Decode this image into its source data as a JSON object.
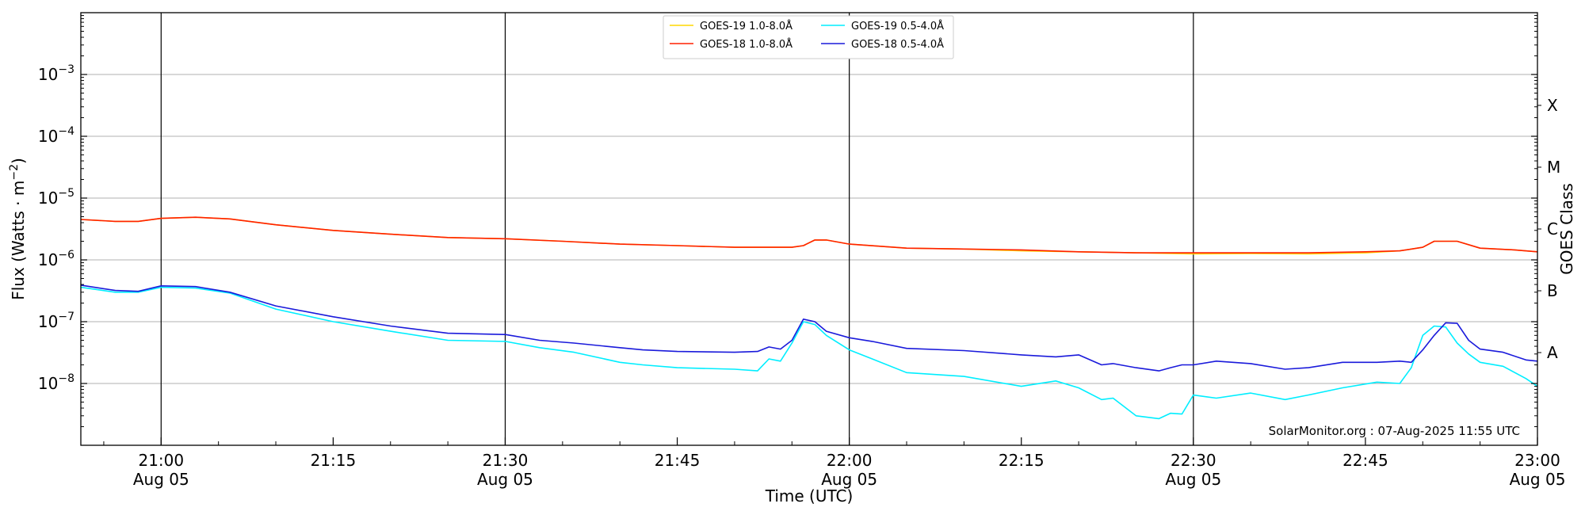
{
  "chart_data": {
    "type": "line",
    "xlabel": "Time (UTC)",
    "ylabel_main": "Flux (Watts · m",
    "ylabel_sup": "−2",
    "ylabel_close": ")",
    "right_label": "GOES Class",
    "watermark": "SolarMonitor.org : 07-Aug-2025 11:55 UTC",
    "x_start_min": 1253,
    "x_end_min": 1380,
    "ylim_exp": [
      -9,
      -2
    ],
    "y_scale": "log",
    "grid": "horizontal at decades",
    "legend_position": "top-center",
    "x_ticks": [
      {
        "min": 1260,
        "line1": "21:00",
        "line2": "Aug 05"
      },
      {
        "min": 1275,
        "line1": "21:15",
        "line2": ""
      },
      {
        "min": 1290,
        "line1": "21:30",
        "line2": "Aug 05"
      },
      {
        "min": 1305,
        "line1": "21:45",
        "line2": ""
      },
      {
        "min": 1320,
        "line1": "22:00",
        "line2": "Aug 05"
      },
      {
        "min": 1335,
        "line1": "22:15",
        "line2": ""
      },
      {
        "min": 1350,
        "line1": "22:30",
        "line2": "Aug 05"
      },
      {
        "min": 1365,
        "line1": "22:45",
        "line2": ""
      },
      {
        "min": 1380,
        "line1": "23:00",
        "line2": "Aug 05"
      }
    ],
    "y_ticks": [
      {
        "exp": -8,
        "base": "10",
        "sup": "−8"
      },
      {
        "exp": -7,
        "base": "10",
        "sup": "−7"
      },
      {
        "exp": -6,
        "base": "10",
        "sup": "−6"
      },
      {
        "exp": -5,
        "base": "10",
        "sup": "−5"
      },
      {
        "exp": -4,
        "base": "10",
        "sup": "−4"
      },
      {
        "exp": -3,
        "base": "10",
        "sup": "−3"
      }
    ],
    "goes_classes": [
      {
        "label": "A",
        "exp": -7.5
      },
      {
        "label": "B",
        "exp": -6.5
      },
      {
        "label": "C",
        "exp": -5.5
      },
      {
        "label": "M",
        "exp": -4.5
      },
      {
        "label": "X",
        "exp": -3.5
      }
    ],
    "day_lines_min": [
      1260,
      1290,
      1320,
      1350
    ],
    "series": [
      {
        "name": "GOES-19 1.0-8.0Å",
        "color": "#ffd700",
        "x": [
          1253,
          1256,
          1258,
          1260,
          1263,
          1266,
          1270,
          1275,
          1280,
          1285,
          1290,
          1295,
          1300,
          1305,
          1310,
          1315,
          1316,
          1317,
          1318,
          1320,
          1325,
          1330,
          1335,
          1340,
          1345,
          1350,
          1355,
          1360,
          1365,
          1368,
          1370,
          1371,
          1373,
          1375,
          1378,
          1380
        ],
        "y": [
          4.5e-06,
          4.2e-06,
          4.2e-06,
          4.7e-06,
          4.9e-06,
          4.6e-06,
          3.7e-06,
          3e-06,
          2.6e-06,
          2.3e-06,
          2.2e-06,
          2e-06,
          1.8e-06,
          1.7e-06,
          1.6e-06,
          1.6e-06,
          1.7e-06,
          2.1e-06,
          2.1e-06,
          1.8e-06,
          1.55e-06,
          1.5e-06,
          1.4e-06,
          1.35e-06,
          1.3e-06,
          1.25e-06,
          1.27e-06,
          1.25e-06,
          1.3e-06,
          1.4e-06,
          1.6e-06,
          2e-06,
          2e-06,
          1.55e-06,
          1.45e-06,
          1.35e-06
        ]
      },
      {
        "name": "GOES-18 1.0-8.0Å",
        "color": "#ff2000",
        "x": [
          1253,
          1256,
          1258,
          1260,
          1263,
          1266,
          1270,
          1275,
          1280,
          1285,
          1290,
          1295,
          1300,
          1305,
          1310,
          1315,
          1316,
          1317,
          1318,
          1320,
          1325,
          1330,
          1335,
          1340,
          1345,
          1350,
          1355,
          1360,
          1365,
          1368,
          1370,
          1371,
          1373,
          1375,
          1378,
          1380
        ],
        "y": [
          4.5e-06,
          4.2e-06,
          4.2e-06,
          4.7e-06,
          4.9e-06,
          4.6e-06,
          3.7e-06,
          3e-06,
          2.6e-06,
          2.3e-06,
          2.2e-06,
          2e-06,
          1.8e-06,
          1.7e-06,
          1.6e-06,
          1.6e-06,
          1.7e-06,
          2.1e-06,
          2.1e-06,
          1.8e-06,
          1.55e-06,
          1.5e-06,
          1.45e-06,
          1.35e-06,
          1.3e-06,
          1.3e-06,
          1.3e-06,
          1.3e-06,
          1.35e-06,
          1.4e-06,
          1.6e-06,
          2e-06,
          2e-06,
          1.55e-06,
          1.45e-06,
          1.35e-06
        ]
      },
      {
        "name": "GOES-19 0.5-4.0Å",
        "color": "#00eeff",
        "x": [
          1253,
          1256,
          1258,
          1260,
          1263,
          1266,
          1270,
          1275,
          1280,
          1285,
          1290,
          1293,
          1296,
          1300,
          1302,
          1305,
          1310,
          1312,
          1313,
          1314,
          1315,
          1316,
          1317,
          1318,
          1320,
          1322,
          1325,
          1330,
          1335,
          1338,
          1340,
          1342,
          1343,
          1345,
          1347,
          1348,
          1349,
          1350,
          1352,
          1355,
          1358,
          1360,
          1363,
          1366,
          1368,
          1369,
          1370,
          1371,
          1372,
          1373,
          1374,
          1375,
          1377,
          1379,
          1380
        ],
        "y": [
          3.6e-07,
          3e-07,
          3e-07,
          3.6e-07,
          3.5e-07,
          2.9e-07,
          1.6e-07,
          1e-07,
          7e-08,
          5e-08,
          4.8e-08,
          3.8e-08,
          3.2e-08,
          2.2e-08,
          2e-08,
          1.8e-08,
          1.7e-08,
          1.6e-08,
          2.5e-08,
          2.3e-08,
          4.5e-08,
          1e-07,
          9e-08,
          6e-08,
          3.5e-08,
          2.5e-08,
          1.5e-08,
          1.3e-08,
          9e-09,
          1.1e-08,
          8.5e-09,
          5.5e-09,
          5.8e-09,
          3e-09,
          2.7e-09,
          3.3e-09,
          3.2e-09,
          6.5e-09,
          5.8e-09,
          7e-09,
          5.5e-09,
          6.5e-09,
          8.5e-09,
          1.05e-08,
          1e-08,
          1.8e-08,
          6e-08,
          8.5e-08,
          8.2e-08,
          4.5e-08,
          3e-08,
          2.2e-08,
          1.9e-08,
          1.2e-08,
          9e-09
        ]
      },
      {
        "name": "GOES-18 0.5-4.0Å",
        "color": "#1a1adb",
        "x": [
          1253,
          1256,
          1258,
          1260,
          1263,
          1266,
          1270,
          1275,
          1280,
          1285,
          1290,
          1293,
          1296,
          1300,
          1302,
          1305,
          1310,
          1312,
          1313,
          1314,
          1315,
          1316,
          1317,
          1318,
          1320,
          1322,
          1325,
          1330,
          1335,
          1338,
          1340,
          1342,
          1343,
          1345,
          1347,
          1348,
          1349,
          1350,
          1352,
          1355,
          1358,
          1360,
          1363,
          1366,
          1368,
          1369,
          1370,
          1371,
          1372,
          1373,
          1374,
          1375,
          1377,
          1379,
          1380
        ],
        "y": [
          3.9e-07,
          3.2e-07,
          3.1e-07,
          3.8e-07,
          3.7e-07,
          3e-07,
          1.8e-07,
          1.2e-07,
          8.5e-08,
          6.5e-08,
          6.2e-08,
          5e-08,
          4.5e-08,
          3.8e-08,
          3.5e-08,
          3.3e-08,
          3.2e-08,
          3.3e-08,
          3.9e-08,
          3.6e-08,
          5e-08,
          1.1e-07,
          1e-07,
          7e-08,
          5.5e-08,
          4.8e-08,
          3.7e-08,
          3.4e-08,
          2.9e-08,
          2.7e-08,
          2.9e-08,
          2e-08,
          2.1e-08,
          1.8e-08,
          1.6e-08,
          1.8e-08,
          2e-08,
          2e-08,
          2.3e-08,
          2.1e-08,
          1.7e-08,
          1.8e-08,
          2.2e-08,
          2.2e-08,
          2.3e-08,
          2.2e-08,
          3.5e-08,
          6e-08,
          9.6e-08,
          9.4e-08,
          5e-08,
          3.6e-08,
          3.2e-08,
          2.4e-08,
          2.3e-08
        ]
      }
    ]
  }
}
